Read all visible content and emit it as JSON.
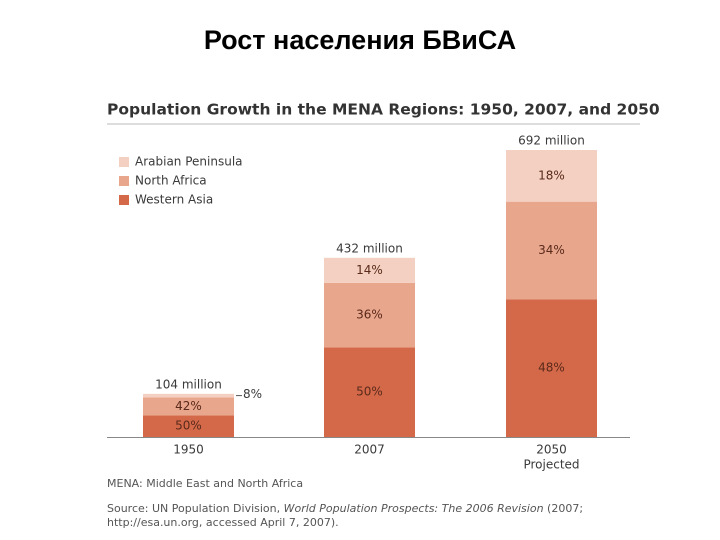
{
  "slide_title": "Рост населения БВиСА",
  "chart_data": {
    "type": "bar",
    "stacked": true,
    "title": "Population Growth in the MENA Regions: 1950, 2007, and 2050",
    "categories": [
      "1950",
      "2007",
      "2050"
    ],
    "category_notes": [
      null,
      null,
      "Projected"
    ],
    "totals": {
      "values": [
        104,
        432,
        692
      ],
      "value_labels": [
        "104 million",
        "432 million",
        "692 million"
      ]
    },
    "series": [
      {
        "name": "Western Asia",
        "color": "#d4694a",
        "values": [
          50,
          50,
          48
        ],
        "value_labels": [
          "50%",
          "50%",
          "48%"
        ]
      },
      {
        "name": "North Africa",
        "color": "#e8a68d",
        "values": [
          42,
          36,
          34
        ],
        "value_labels": [
          "42%",
          "36%",
          "34%"
        ]
      },
      {
        "name": "Arabian Peninsula",
        "color": "#f3d0c1",
        "values": [
          8,
          14,
          18
        ],
        "value_labels": [
          "8%",
          "14%",
          "18%"
        ]
      }
    ],
    "legend": "top-left",
    "notes": "MENA: Middle East and North Africa",
    "source": [
      "Source: UN Population Division, ",
      "World Population Prospects: The 2006 Revision",
      " (2007;",
      "http://esa.un.org, accessed April 7, 2007)."
    ]
  }
}
